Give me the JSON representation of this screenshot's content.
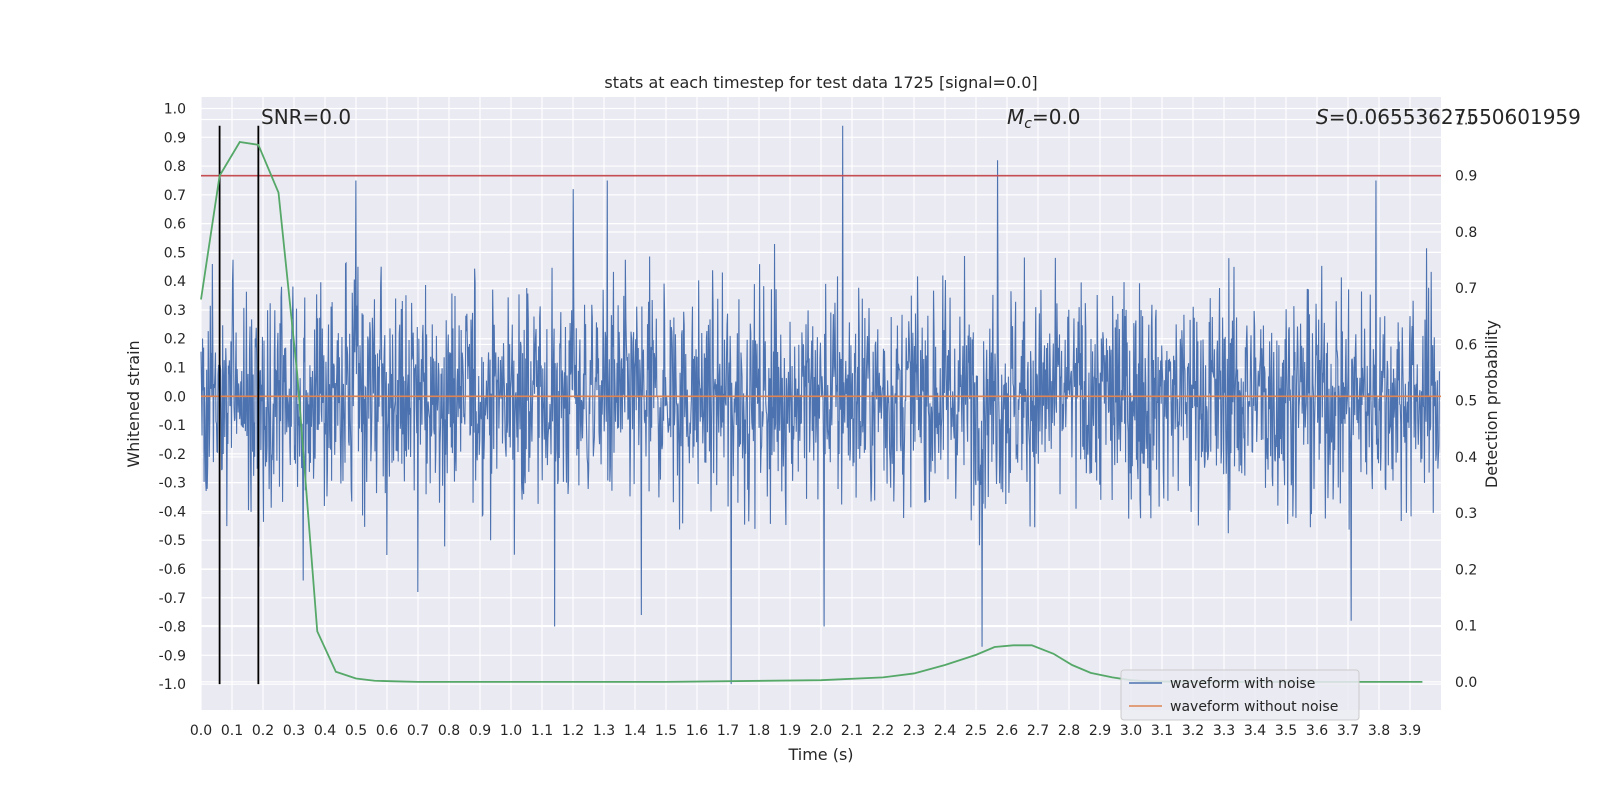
{
  "chart_data": {
    "type": "line",
    "title": "stats at each timestep for test data 1725 [signal=0.0]",
    "xlabel": "Time (s)",
    "ylabel": "Whitened strain",
    "y2label": "Detection probability",
    "xlim": [
      0.0,
      4.0
    ],
    "ylim": [
      -1.09,
      1.04
    ],
    "y2lim": [
      -0.05,
      1.04
    ],
    "x_ticks": [
      "0.0",
      "0.1",
      "0.2",
      "0.3",
      "0.4",
      "0.5",
      "0.6",
      "0.7",
      "0.8",
      "0.9",
      "1.0",
      "1.1",
      "1.2",
      "1.3",
      "1.4",
      "1.5",
      "1.6",
      "1.7",
      "1.8",
      "1.9",
      "2.0",
      "2.1",
      "2.2",
      "2.3",
      "2.4",
      "2.5",
      "2.6",
      "2.7",
      "2.8",
      "2.9",
      "3.0",
      "3.1",
      "3.2",
      "3.3",
      "3.4",
      "3.5",
      "3.6",
      "3.7",
      "3.8",
      "3.9"
    ],
    "y_ticks": [
      "1.0",
      "0.9",
      "0.8",
      "0.7",
      "0.6",
      "0.5",
      "0.4",
      "0.3",
      "0.2",
      "0.1",
      "0.0",
      "-0.1",
      "-0.2",
      "-0.3",
      "-0.4",
      "-0.5",
      "-0.6",
      "-0.7",
      "-0.8",
      "-0.9",
      "-1.0"
    ],
    "y2_ticks": [
      "0.0",
      "0.1",
      "0.2",
      "0.3",
      "0.4",
      "0.5",
      "0.6",
      "0.7",
      "0.8",
      "0.9",
      "1.0"
    ],
    "grid": true,
    "legend": {
      "placement": "lower-right",
      "entries": [
        {
          "label": "waveform with noise",
          "color": "#4c72b0"
        },
        {
          "label": "waveform without noise",
          "color": "#dd8452"
        }
      ]
    },
    "annotations": {
      "snr": "SNR=0.0",
      "mc_symbol": "M",
      "mc_sub": "c",
      "mc_value": "=0.0",
      "s_symbol": "S",
      "s_value": "=0.06553627550601959"
    },
    "noise_series": {
      "name": "waveform with noise",
      "color": "#4c72b0",
      "spikes": [
        {
          "x": 0.5,
          "y": 0.75
        },
        {
          "x": 1.2,
          "y": 0.72
        },
        {
          "x": 1.31,
          "y": 0.75
        },
        {
          "x": 2.07,
          "y": 0.94
        },
        {
          "x": 2.57,
          "y": 0.82
        },
        {
          "x": 3.79,
          "y": 0.75
        },
        {
          "x": 1.71,
          "y": -1.0
        },
        {
          "x": 2.01,
          "y": -0.8
        },
        {
          "x": 1.14,
          "y": -0.8
        },
        {
          "x": 2.52,
          "y": -0.87
        },
        {
          "x": 3.71,
          "y": -0.78
        },
        {
          "x": 0.33,
          "y": -0.64
        },
        {
          "x": 1.42,
          "y": -0.76
        },
        {
          "x": 0.7,
          "y": -0.68
        }
      ]
    },
    "clean_series": {
      "name": "waveform without noise",
      "color": "#dd8452",
      "y": 0.0
    },
    "threshold_line": {
      "y2": 0.9,
      "color": "#c44e52"
    },
    "vertical_lines": {
      "x": [
        0.06,
        0.185
      ],
      "color": "#000000"
    },
    "probability_series": {
      "color": "#55a868",
      "x": [
        0.0,
        0.06,
        0.125,
        0.185,
        0.25,
        0.31,
        0.375,
        0.435,
        0.5,
        0.56,
        0.625,
        0.7,
        0.8,
        1.0,
        1.5,
        2.0,
        2.2,
        2.3,
        2.4,
        2.5,
        2.56,
        2.62,
        2.68,
        2.75,
        2.81,
        2.87,
        2.94,
        3.0,
        3.06,
        3.2,
        3.5,
        3.94
      ],
      "y": [
        0.68,
        0.9,
        0.96,
        0.955,
        0.87,
        0.55,
        0.09,
        0.018,
        0.006,
        0.002,
        0.001,
        0.0,
        0.0,
        0.0,
        0.0,
        0.003,
        0.008,
        0.015,
        0.03,
        0.048,
        0.062,
        0.065,
        0.065,
        0.05,
        0.03,
        0.016,
        0.008,
        0.003,
        0.001,
        0.0,
        0.0,
        0.0
      ]
    }
  }
}
